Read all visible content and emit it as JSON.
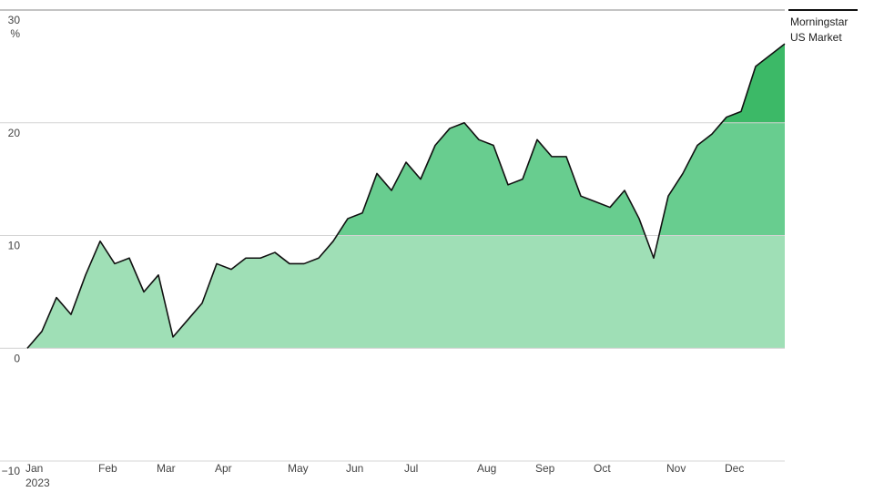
{
  "chart_data": {
    "type": "area",
    "categories": [
      "Jan",
      null,
      null,
      null,
      null,
      "Feb",
      null,
      null,
      null,
      "Mar",
      null,
      null,
      null,
      "Apr",
      null,
      null,
      null,
      null,
      "May",
      null,
      null,
      null,
      "Jun",
      null,
      null,
      null,
      "Jul",
      null,
      null,
      null,
      null,
      "Aug",
      null,
      null,
      null,
      "Sep",
      null,
      null,
      null,
      "Oct",
      null,
      null,
      null,
      null,
      "Nov",
      null,
      null,
      null,
      "Dec",
      null,
      null,
      null,
      null
    ],
    "x_sublabel": "2023",
    "y_unit": "%",
    "series": [
      {
        "name": "Morningstar US Market",
        "color": "#111111",
        "values": [
          0,
          1.5,
          4.5,
          3,
          6.5,
          9.5,
          7.5,
          8,
          5,
          6.5,
          1,
          2.5,
          4,
          7.5,
          7,
          8,
          8,
          8.5,
          7.5,
          7.5,
          8,
          9.5,
          11.5,
          12,
          15.5,
          14,
          16.5,
          15,
          18,
          19.5,
          20,
          18.5,
          18,
          14.5,
          15,
          18.5,
          17,
          17,
          13.5,
          13,
          12.5,
          14,
          11.5,
          8,
          13.5,
          15.5,
          18,
          19,
          20.5,
          21,
          25,
          26,
          27
        ]
      }
    ],
    "band_colors": [
      "#9fdfb6",
      "#68cd8f",
      "#3cb967"
    ],
    "ylim": [
      -10,
      30
    ],
    "yticks": [
      {
        "value": -10,
        "label": "−10"
      },
      0,
      10,
      20,
      30
    ],
    "grid": true,
    "legend": "top-right"
  }
}
